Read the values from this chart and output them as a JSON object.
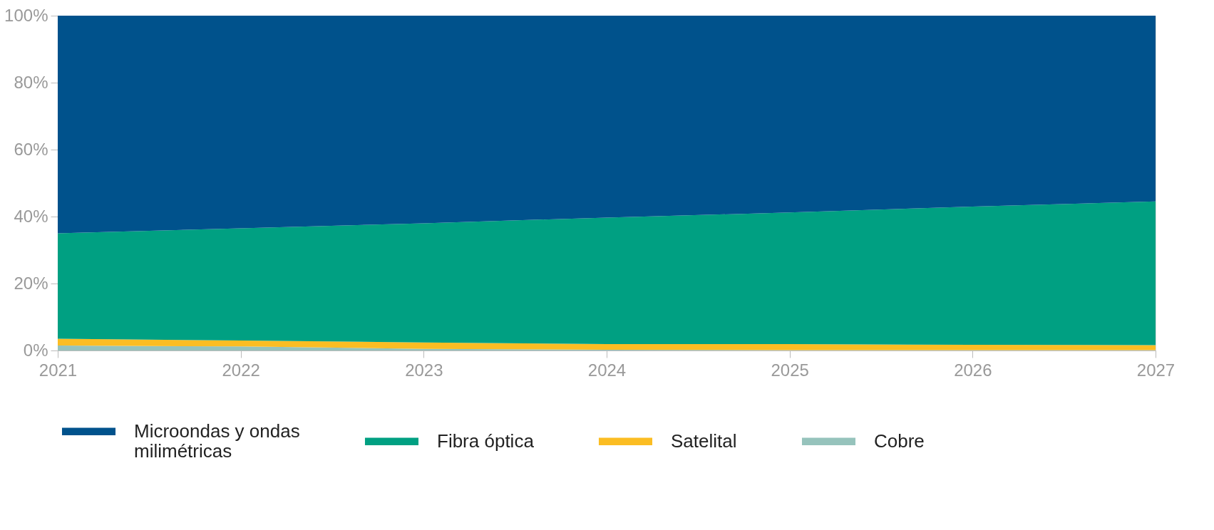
{
  "chart_data": {
    "type": "area",
    "stacked": true,
    "x": [
      2021,
      2022,
      2023,
      2024,
      2025,
      2026,
      2027
    ],
    "series": [
      {
        "name": "Cobre",
        "color": "#96c3bc",
        "values": [
          1.5,
          1.2,
          0.5,
          0.2,
          0.1,
          0.1,
          0.1
        ]
      },
      {
        "name": "Satelital",
        "color": "#fbbd23",
        "values": [
          2.0,
          1.8,
          1.9,
          1.7,
          1.8,
          1.6,
          1.5
        ]
      },
      {
        "name": "Fibra óptica",
        "color": "#00a082",
        "values": [
          31.5,
          33.5,
          35.6,
          37.8,
          39.3,
          41.3,
          42.9
        ]
      },
      {
        "name": "Microondas y ondas milimétricas",
        "color": "#00528c",
        "values": [
          65.0,
          63.5,
          62.0,
          60.3,
          58.8,
          57.0,
          55.5
        ]
      }
    ],
    "xlim": [
      2021,
      2027
    ],
    "xticks": [
      2021,
      2022,
      2023,
      2024,
      2025,
      2026,
      2027
    ],
    "ylim": [
      0,
      100
    ],
    "yticks": [
      {
        "value": 0,
        "label": "0%"
      },
      {
        "value": 20,
        "label": "20%"
      },
      {
        "value": 40,
        "label": "40%"
      },
      {
        "value": 60,
        "label": "60%"
      },
      {
        "value": 80,
        "label": "80%"
      },
      {
        "value": 100,
        "label": "100%"
      }
    ],
    "grid": false,
    "legend": "bottom"
  }
}
